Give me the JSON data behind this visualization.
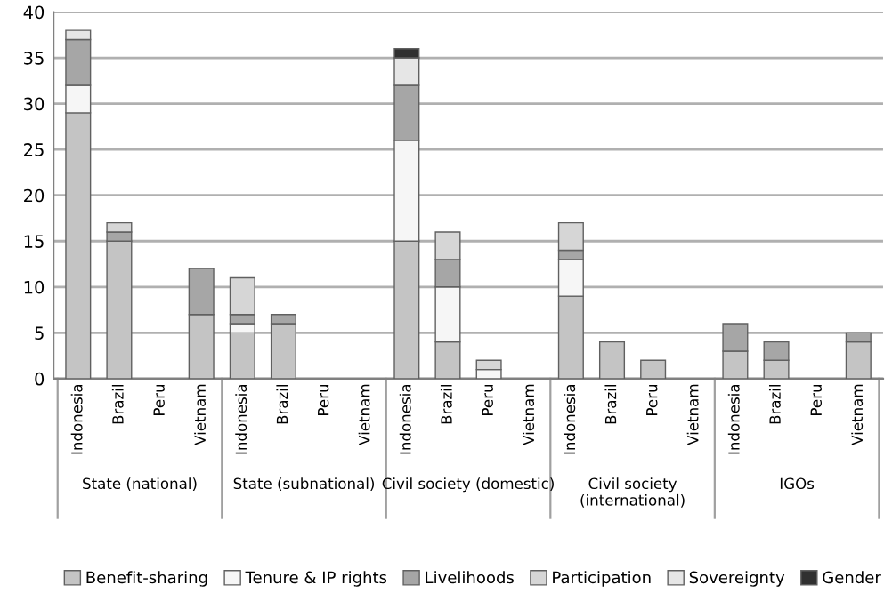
{
  "chart_data": {
    "type": "bar",
    "stacked": true,
    "categories": [
      "Indonesia",
      "Brazil",
      "Peru",
      "Vietnam",
      "Indonesia",
      "Brazil",
      "Peru",
      "Vietnam",
      "Indonesia",
      "Brazil",
      "Peru",
      "Vietnam",
      "Indonesia",
      "Brazil",
      "Peru",
      "Vietnam",
      "Indonesia",
      "Brazil",
      "Peru",
      "Vietnam"
    ],
    "series": [
      {
        "name": "Benefit-sharing",
        "color": "#c4c4c4",
        "values": [
          29,
          15,
          0,
          7,
          5,
          6,
          0,
          0,
          15,
          4,
          0,
          0,
          9,
          4,
          2,
          0,
          3,
          2,
          0,
          4
        ]
      },
      {
        "name": "Tenure & IP rights",
        "color": "#f6f6f6",
        "values": [
          3,
          0,
          0,
          0,
          1,
          0,
          0,
          0,
          11,
          6,
          1,
          0,
          4,
          0,
          0,
          0,
          0,
          0,
          0,
          0
        ]
      },
      {
        "name": "Livelihoods",
        "color": "#a6a6a6",
        "values": [
          5,
          1,
          0,
          5,
          1,
          1,
          0,
          0,
          6,
          3,
          0,
          0,
          1,
          0,
          0,
          0,
          3,
          2,
          0,
          1
        ]
      },
      {
        "name": "Participation",
        "color": "#d6d6d6",
        "values": [
          0,
          1,
          0,
          0,
          4,
          0,
          0,
          0,
          0,
          3,
          1,
          0,
          3,
          0,
          0,
          0,
          0,
          0,
          0,
          0
        ]
      },
      {
        "name": "Sovereignty",
        "color": "#e6e6e6",
        "values": [
          1,
          0,
          0,
          0,
          0,
          0,
          0,
          0,
          3,
          0,
          0,
          0,
          0,
          0,
          0,
          0,
          0,
          0,
          0,
          0
        ]
      },
      {
        "name": "Gender",
        "color": "#303030",
        "values": [
          0,
          0,
          0,
          0,
          0,
          0,
          0,
          0,
          1,
          0,
          0,
          0,
          0,
          0,
          0,
          0,
          0,
          0,
          0,
          0
        ]
      }
    ],
    "annotations": [
      "State (national)",
      "State (subnational)",
      "Civil society (domestic)",
      "Civil society\n(international)",
      "IGOs"
    ],
    "ylim": [
      0,
      40
    ],
    "yticks": [
      0,
      5,
      10,
      15,
      20,
      25,
      30,
      35,
      40
    ],
    "grid": "y",
    "legend": "bottom"
  }
}
